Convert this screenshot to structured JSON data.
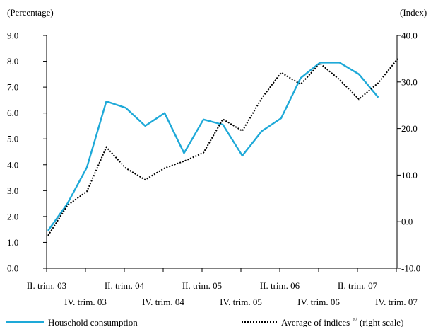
{
  "chart_data": {
    "type": "line",
    "left_axis_unit": "(Percentage)",
    "right_axis_unit": "(Index)",
    "y_left": {
      "min": 0,
      "max": 9,
      "ticks": [
        "0.0",
        "1.0",
        "2.0",
        "3.0",
        "4.0",
        "5.0",
        "6.0",
        "7.0",
        "8.0",
        "9.0"
      ]
    },
    "y_right": {
      "min": -10,
      "max": 40,
      "ticks": [
        "-10.0",
        "0.0",
        "10.0",
        "20.0",
        "30.0",
        "40.0"
      ]
    },
    "x_labels_upper": [
      "II. trim. 03",
      "II. trim. 04",
      "II. trim. 05",
      "II. trim. 06",
      "II. trim. 07"
    ],
    "x_labels_lower": [
      "IV. trim. 03",
      "IV. trim. 04",
      "IV. trim. 05",
      "IV. trim. 06",
      "IV. trim. 07"
    ],
    "series": [
      {
        "name": "Household consumption",
        "axis": "left",
        "color": "#1ea9d8",
        "style": "solid",
        "values": [
          1.45,
          2.5,
          3.9,
          6.45,
          6.2,
          5.5,
          6.0,
          4.45,
          5.75,
          5.55,
          4.35,
          5.3,
          5.8,
          7.35,
          7.95,
          7.95,
          7.5,
          6.6
        ]
      },
      {
        "name": "Average of indices",
        "axis": "right",
        "color": "#000000",
        "style": "dotted",
        "values": [
          -3.0,
          3.5,
          6.5,
          16.0,
          11.5,
          9.0,
          11.5,
          13.0,
          14.8,
          22.0,
          19.5,
          26.5,
          32.0,
          29.5,
          34.0,
          30.5,
          26.3,
          29.8,
          35.0
        ]
      }
    ],
    "legend": [
      {
        "label": "Household consumption",
        "sup": "",
        "suffix": ""
      },
      {
        "label": "Average of  indices",
        "sup": "a/",
        "suffix": " (right scale)"
      }
    ]
  }
}
